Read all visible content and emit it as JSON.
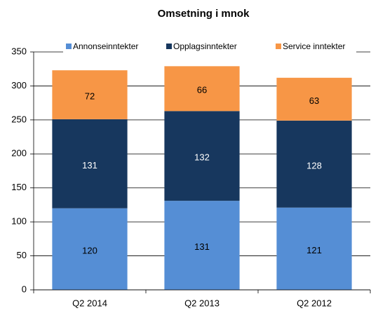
{
  "chart_data": {
    "type": "stacked_bar",
    "title": "Omsetning i mnok",
    "categories": [
      "Q2 2014",
      "Q2 2013",
      "Q2 2012"
    ],
    "series": [
      {
        "name": "Annonseinntekter",
        "color": "#558ed5",
        "values": [
          120,
          131,
          121
        ]
      },
      {
        "name": "Opplagsinntekter",
        "color": "#17375e",
        "values": [
          131,
          132,
          128
        ]
      },
      {
        "name": "Service inntekter",
        "color": "#f79646",
        "values": [
          72,
          66,
          63
        ]
      }
    ],
    "ylim": [
      0,
      350
    ],
    "yticks": [
      0,
      50,
      100,
      150,
      200,
      250,
      300,
      350
    ],
    "grid": true,
    "legend": "top"
  }
}
